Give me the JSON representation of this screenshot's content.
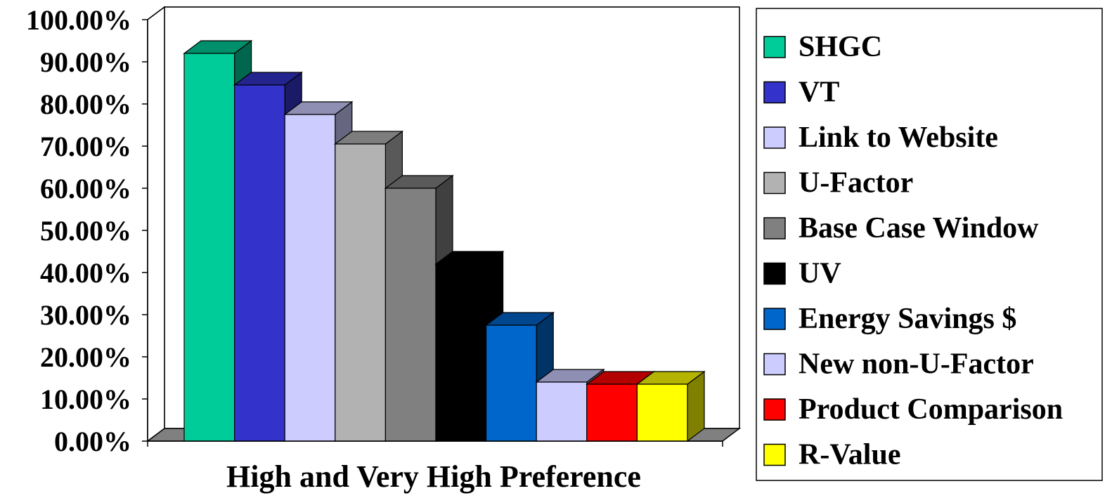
{
  "chart_data": {
    "type": "bar",
    "title": "",
    "xlabel": "High and Very High Preference",
    "ylabel": "",
    "ylim": [
      0,
      100
    ],
    "grid": true,
    "legend_position": "right",
    "y_tick_labels": [
      "0.00%",
      "10.00%",
      "20.00%",
      "30.00%",
      "40.00%",
      "50.00%",
      "60.00%",
      "70.00%",
      "80.00%",
      "90.00%",
      "100.00%"
    ],
    "series": [
      {
        "name": "SHGC",
        "value": 92,
        "color": "#00CC99"
      },
      {
        "name": "VT",
        "value": 84.5,
        "color": "#3333CC"
      },
      {
        "name": "Link to Website",
        "value": 77.5,
        "color": "#CCCCFF"
      },
      {
        "name": "U-Factor",
        "value": 70.5,
        "color": "#B2B2B2"
      },
      {
        "name": "Base Case Window",
        "value": 60,
        "color": "#808080"
      },
      {
        "name": "UV",
        "value": 42,
        "color": "#000000"
      },
      {
        "name": "Energy Savings $",
        "value": 27.5,
        "color": "#0066CC"
      },
      {
        "name": "New non-U-Factor",
        "value": 14,
        "color": "#CCCCFF"
      },
      {
        "name": "Product Comparison",
        "value": 13.5,
        "color": "#FF0000"
      },
      {
        "name": "R-Value",
        "value": 13.5,
        "color": "#FFFF00"
      }
    ]
  }
}
